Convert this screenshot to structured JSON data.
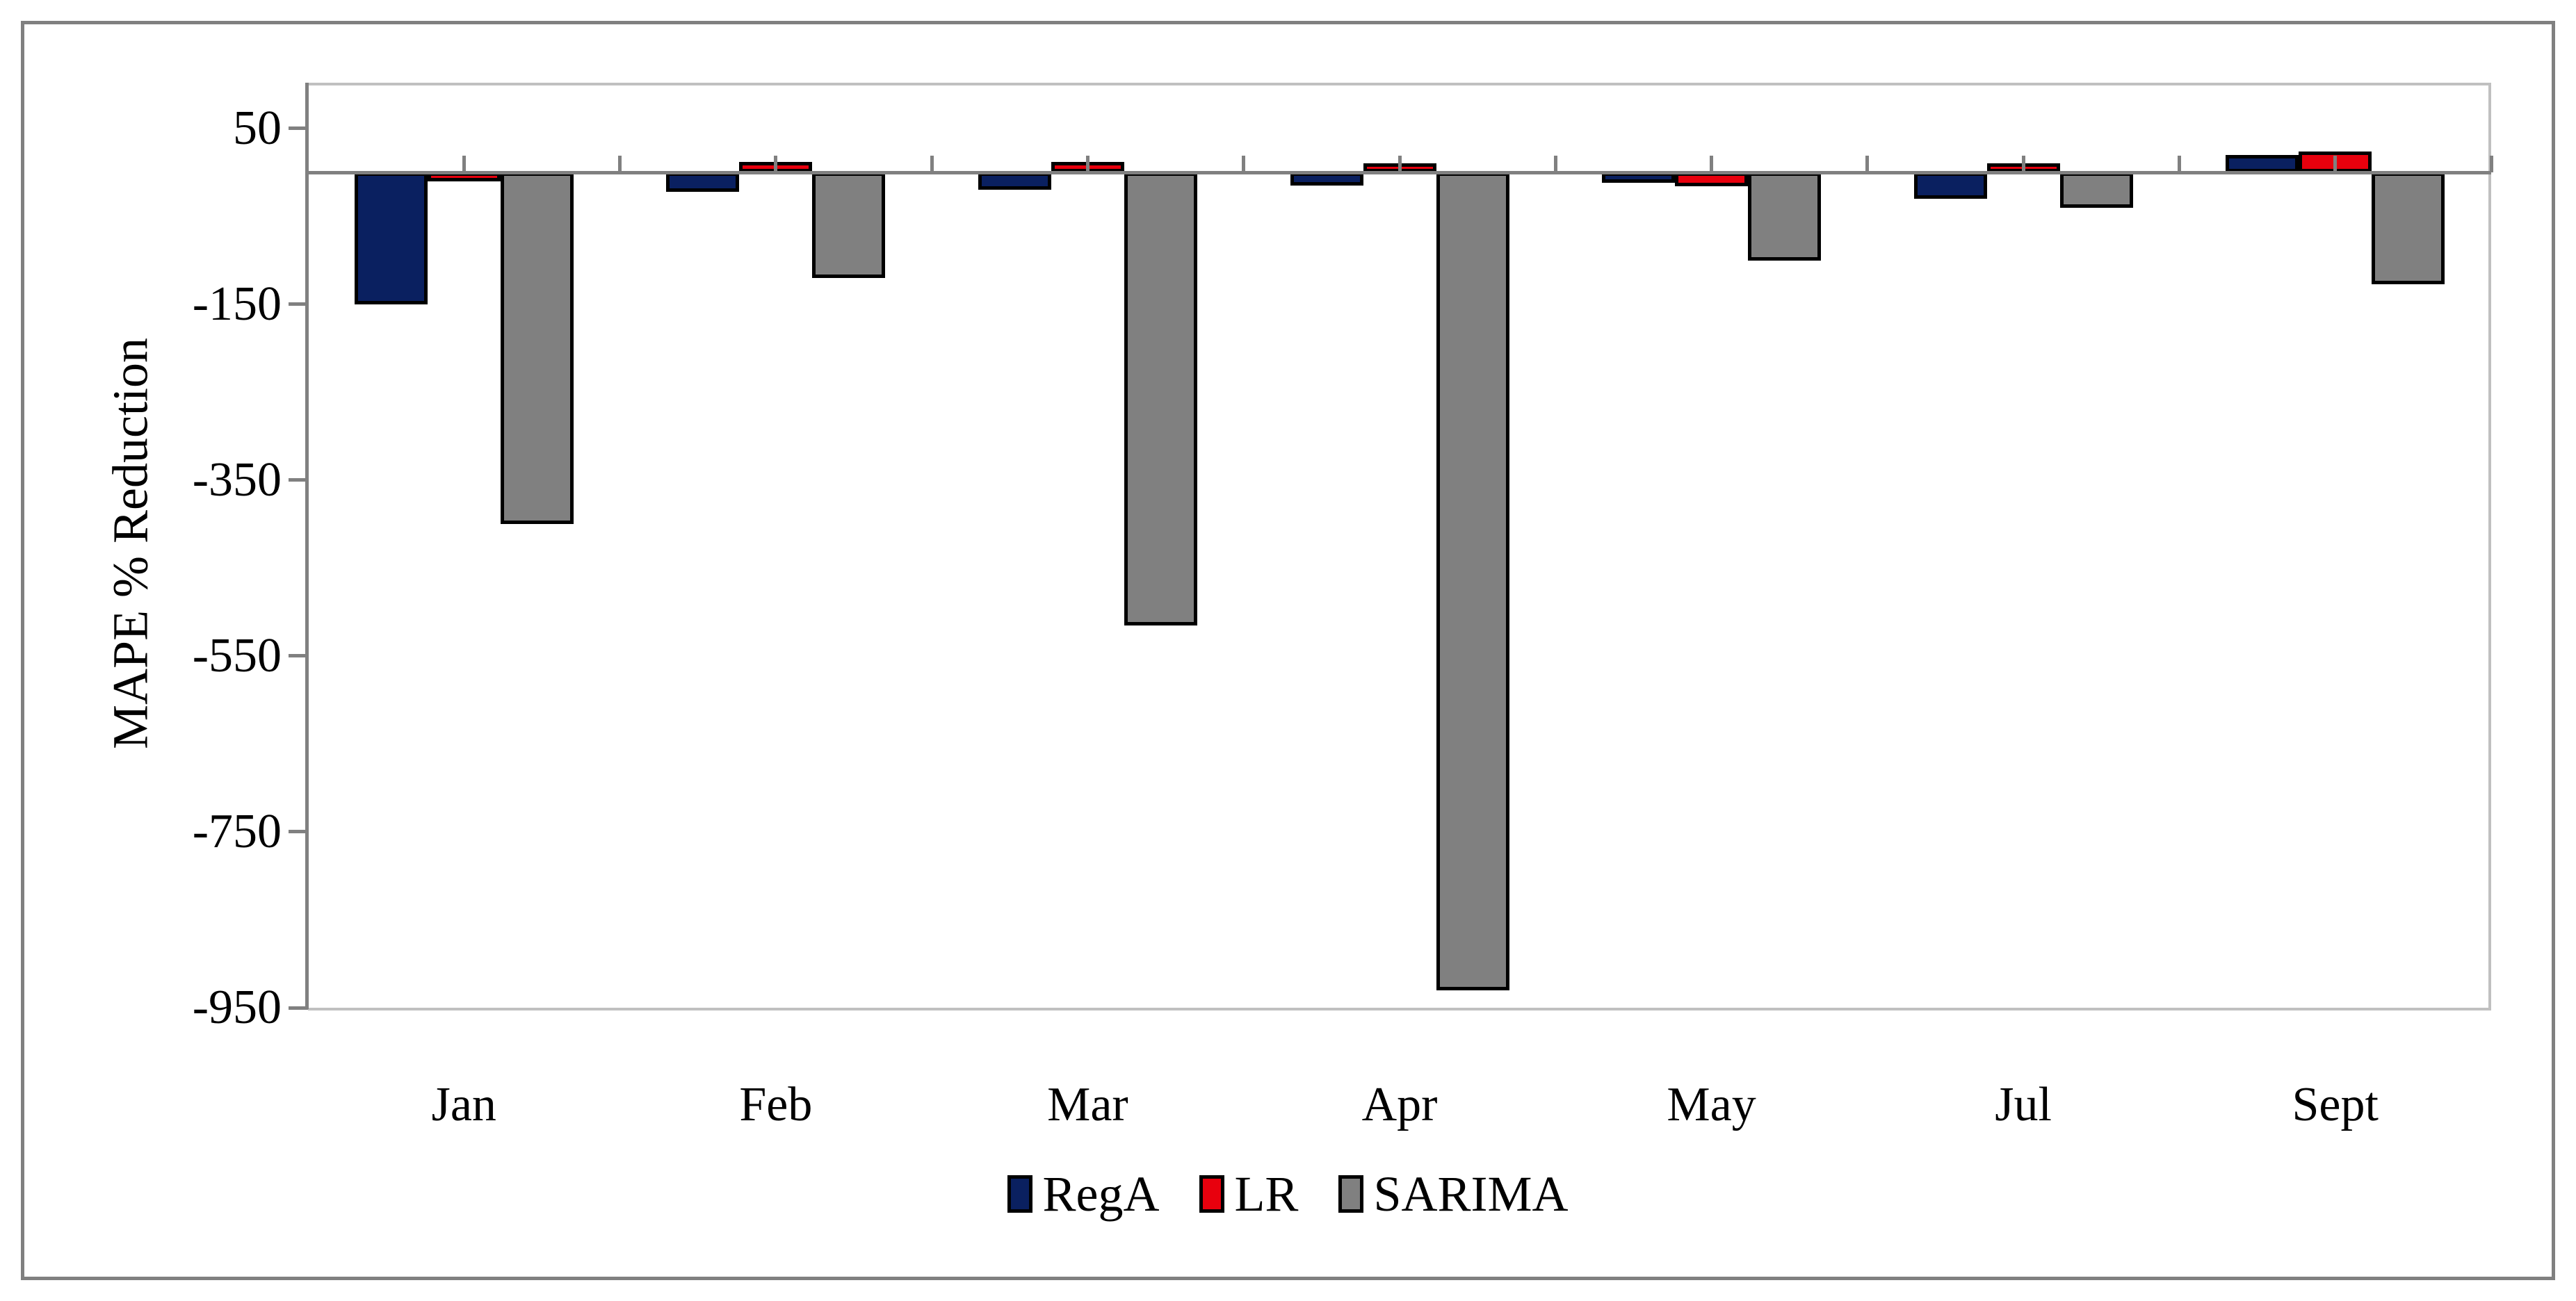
{
  "chart_data": {
    "type": "bar",
    "title": "",
    "xlabel": "",
    "ylabel": "MAPE % Reduction",
    "categories": [
      "Jan",
      "Feb",
      "Mar",
      "Apr",
      "May",
      "Jul",
      "Sept"
    ],
    "series": [
      {
        "name": "RegA",
        "color": "#0a2060",
        "values": [
          -150,
          -22,
          -20,
          -15,
          -12,
          -30,
          20
        ]
      },
      {
        "name": "LR",
        "color": "#e8000d",
        "values": [
          -10,
          12,
          12,
          10,
          -16,
          10,
          24
        ]
      },
      {
        "name": "SARIMA",
        "color": "#808080",
        "values": [
          -400,
          -120,
          -515,
          -930,
          -100,
          -40,
          -127
        ]
      }
    ],
    "y_ticks": [
      50,
      -150,
      -350,
      -550,
      -750,
      -950
    ],
    "y_tick_labels": [
      "50",
      "-150",
      "-350",
      "-550",
      "-750",
      "-950"
    ],
    "ylim": [
      -950,
      102
    ],
    "grid": false,
    "legend_position": "bottom",
    "legend_labels": [
      "RegA",
      "LR",
      "SARIMA"
    ],
    "bar_border_color": "#000000",
    "axis_color": "#808080",
    "plot_border_color": "#c0c0c0",
    "frame_border_color": "#808080"
  }
}
